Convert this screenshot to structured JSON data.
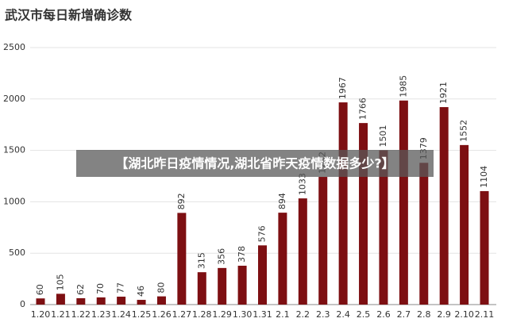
{
  "chart_data": {
    "type": "bar",
    "title": "武汉市每日新增确诊数",
    "categories": [
      "1.20",
      "1.21",
      "1.22",
      "1.23",
      "1.24",
      "1.25",
      "1.26",
      "1.27",
      "1.28",
      "1.29",
      "1.30",
      "1.31",
      "2.1",
      "2.2",
      "2.3",
      "2.4",
      "2.5",
      "2.6",
      "2.7",
      "2.8",
      "2.9",
      "2.10",
      "2.11"
    ],
    "values": [
      60,
      105,
      62,
      70,
      77,
      46,
      80,
      892,
      315,
      356,
      378,
      576,
      894,
      1033,
      1242,
      1967,
      1766,
      1501,
      1985,
      1379,
      1921,
      1552,
      1104
    ],
    "color": "#7d0f12",
    "ylim": [
      0,
      2500
    ],
    "yticks": [
      0,
      500,
      1000,
      1500,
      2000,
      2500
    ],
    "grid": true
  },
  "banner": "【湖北昨日疫情情况,湖北省昨天疫情数据多少?】"
}
